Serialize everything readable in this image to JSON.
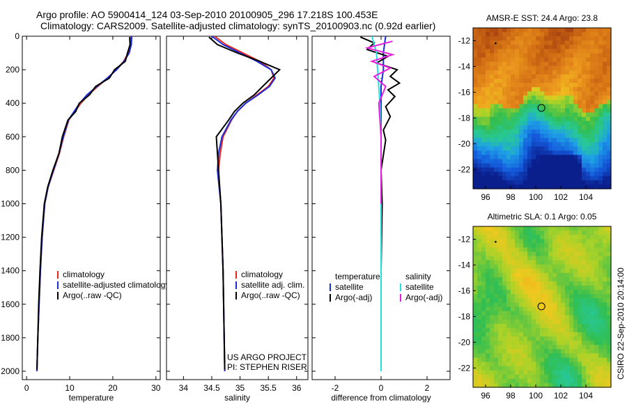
{
  "header": {
    "line1": "Argo profile: AO 5900414_124 03-Sep-2010 20100905_296 17.218S 100.453E",
    "line2": "Climatology: CARS2009. Satellite-adjusted climatology: synTS_20100903.nc (0.92d earlier)"
  },
  "side_label": "CSIRO 22-Sep-2010 20:14:00",
  "colors": {
    "climatology": "#e8261b",
    "satellite": "#1a2bd9",
    "argo": "#000000",
    "sat_salinity": "#22e0e0",
    "argo_salinity_diff": "#e61ee0"
  },
  "chart_data": [
    {
      "id": "temperature",
      "type": "line",
      "xlabel": "temperature",
      "ylabel": "",
      "xlim": [
        -1,
        31
      ],
      "ylim": [
        2050,
        0
      ],
      "xticks": [
        0,
        10,
        20,
        30
      ],
      "xtick_labels": [
        "0",
        "10",
        "20",
        "30"
      ],
      "yticks": [
        0,
        200,
        400,
        600,
        800,
        1000,
        1200,
        1400,
        1600,
        1800,
        2000
      ],
      "ytick_labels": [
        "0",
        "200",
        "400",
        "600",
        "800",
        "1000",
        "1200",
        "1400",
        "1600",
        "1800",
        "2000"
      ],
      "legend": [
        "climatology",
        "satellite-adjusted climatology",
        "Argo(..raw -QC)"
      ],
      "legend_location": "lower-middle",
      "series": [
        {
          "name": "climatology",
          "color": "#e8261b",
          "x": [
            24.2,
            24.1,
            23.6,
            22.5,
            20.8,
            18.8,
            16.5,
            14.3,
            12.6,
            11.2,
            9.8,
            8.6,
            7.6,
            6.3,
            5.0,
            4.2,
            3.6,
            3.2,
            2.9,
            2.6,
            2.4
          ],
          "y": [
            0,
            50,
            100,
            150,
            200,
            250,
            300,
            350,
            400,
            450,
            500,
            600,
            700,
            800,
            900,
            1000,
            1200,
            1400,
            1600,
            1800,
            2000
          ]
        },
        {
          "name": "satellite-adjusted climatology",
          "color": "#1a2bd9",
          "x": [
            24.4,
            24.3,
            23.8,
            22.6,
            20.9,
            18.7,
            16.3,
            14.0,
            12.3,
            11.0,
            9.7,
            8.5,
            7.5,
            6.2,
            5.0,
            4.2,
            3.6,
            3.2,
            2.9,
            2.6,
            2.4
          ],
          "y": [
            0,
            50,
            100,
            150,
            200,
            250,
            300,
            350,
            400,
            450,
            500,
            600,
            700,
            800,
            900,
            1000,
            1200,
            1400,
            1600,
            1800,
            2000
          ]
        },
        {
          "name": "Argo(..raw -QC)",
          "color": "#000000",
          "x": [
            23.9,
            24.0,
            23.4,
            22.9,
            20.4,
            19.2,
            16.0,
            14.6,
            12.2,
            11.4,
            9.6,
            8.3,
            7.5,
            6.1,
            4.9,
            4.1,
            3.5,
            3.1,
            2.8,
            2.6,
            2.4
          ],
          "y": [
            5,
            50,
            100,
            150,
            200,
            250,
            300,
            350,
            400,
            450,
            500,
            600,
            700,
            800,
            900,
            1000,
            1200,
            1400,
            1600,
            1800,
            1990
          ]
        }
      ]
    },
    {
      "id": "salinity",
      "type": "line",
      "xlabel": "salinity",
      "ylabel": "",
      "xlim": [
        33.7,
        36.2
      ],
      "ylim": [
        2050,
        0
      ],
      "xticks": [
        34,
        34.5,
        35,
        35.5,
        36
      ],
      "xtick_labels": [
        "34",
        "34.5",
        "35",
        "35.5",
        "36"
      ],
      "legend": [
        "climatology",
        "satellite adj. clim.",
        "Argo(..raw -QC)"
      ],
      "legend_location": "lower-right",
      "annotation": [
        "US ARGO PROJECT",
        "PI: STEPHEN RISER"
      ],
      "series": [
        {
          "name": "climatology",
          "color": "#e8261b",
          "x": [
            34.55,
            34.75,
            35.05,
            35.35,
            35.55,
            35.6,
            35.5,
            35.3,
            35.1,
            34.95,
            34.85,
            34.7,
            34.65,
            34.62,
            34.64,
            34.66,
            34.68,
            34.7,
            34.71,
            34.72,
            34.73
          ],
          "y": [
            0,
            50,
            100,
            150,
            200,
            250,
            300,
            350,
            400,
            450,
            500,
            600,
            700,
            800,
            900,
            1000,
            1200,
            1400,
            1600,
            1800,
            2000
          ]
        },
        {
          "name": "satellite adj. clim.",
          "color": "#1a2bd9",
          "x": [
            34.5,
            34.7,
            35.0,
            35.3,
            35.55,
            35.62,
            35.52,
            35.32,
            35.1,
            34.95,
            34.84,
            34.68,
            34.62,
            34.6,
            34.63,
            34.66,
            34.68,
            34.7,
            34.71,
            34.72,
            34.73
          ],
          "y": [
            0,
            50,
            100,
            150,
            200,
            250,
            300,
            350,
            400,
            450,
            500,
            600,
            700,
            800,
            900,
            1000,
            1200,
            1400,
            1600,
            1800,
            2000
          ]
        },
        {
          "name": "Argo(..raw -QC)",
          "color": "#000000",
          "x": [
            34.45,
            34.6,
            34.95,
            35.35,
            35.7,
            35.55,
            35.4,
            35.25,
            35.05,
            34.9,
            34.8,
            34.58,
            34.6,
            34.62,
            34.64,
            34.66,
            34.68,
            34.7,
            34.71,
            34.72,
            34.73
          ],
          "y": [
            5,
            50,
            100,
            150,
            200,
            250,
            300,
            350,
            400,
            450,
            500,
            600,
            700,
            800,
            900,
            1000,
            1200,
            1400,
            1600,
            1800,
            1990
          ]
        }
      ]
    },
    {
      "id": "difference",
      "type": "line",
      "xlabel": "difference from climatology",
      "ylabel": "",
      "xlim": [
        -3,
        3
      ],
      "ylim": [
        2050,
        0
      ],
      "xticks": [
        -2,
        0,
        2
      ],
      "xtick_labels": [
        "-2",
        "0",
        "2"
      ],
      "legend_left": [
        "temperature",
        "satellite",
        "Argo(-adj)"
      ],
      "legend_right": [
        "salinity",
        "satellite",
        "Argo(-adj)"
      ],
      "legend_location": "lower-middle",
      "series": [
        {
          "name": "temperature satellite",
          "color": "#1a2bd9",
          "x": [
            0.2,
            0.1,
            0.1,
            0.0,
            0.0,
            0.0,
            0.0,
            0.0,
            0.0,
            0.0,
            0.0,
            0.0,
            0.0
          ],
          "y": [
            0,
            100,
            200,
            300,
            400,
            500,
            600,
            800,
            1000,
            1200,
            1500,
            1800,
            2000
          ]
        },
        {
          "name": "temperature Argo(-adj)",
          "color": "#000000",
          "x": [
            -0.9,
            -0.3,
            -0.6,
            0.3,
            -0.2,
            0.7,
            0.4,
            0.8,
            0.3,
            0.6,
            0.2,
            0.4,
            0.1,
            0.2,
            0.0,
            0.05,
            0.0,
            0.0
          ],
          "y": [
            5,
            40,
            80,
            120,
            160,
            200,
            240,
            280,
            320,
            360,
            420,
            480,
            560,
            620,
            800,
            1000,
            1400,
            1990
          ]
        },
        {
          "name": "salinity satellite",
          "color": "#22e0e0",
          "x": [
            -0.4,
            -0.2,
            -0.15,
            -0.1,
            -0.05,
            0.0,
            0.0,
            0.0,
            0.0
          ],
          "y": [
            0,
            100,
            200,
            300,
            400,
            600,
            1000,
            1500,
            2000
          ]
        },
        {
          "name": "salinity Argo(-adj)",
          "color": "#e61ee0",
          "x": [
            0.5,
            -0.6,
            0.5,
            -0.4,
            0.4,
            -0.3,
            0.2,
            -0.1,
            0.0,
            0.0,
            0.0
          ],
          "y": [
            30,
            70,
            110,
            150,
            190,
            240,
            300,
            400,
            600,
            800,
            1000
          ]
        }
      ]
    },
    {
      "id": "sst_map",
      "type": "heatmap",
      "title": "AMSR-E SST: 24.4 Argo: 23.8",
      "xlim": [
        95,
        106
      ],
      "ylim": [
        -23.5,
        -11
      ],
      "xticks": [
        96,
        98,
        100,
        102,
        104
      ],
      "xtick_labels": [
        "96",
        "98",
        "100",
        "102",
        "104"
      ],
      "yticks": [
        -12,
        -14,
        -16,
        -18,
        -20,
        -22
      ],
      "ytick_labels": [
        "-12",
        "-14",
        "-16",
        "-18",
        "-20",
        "-22"
      ],
      "marker": {
        "lon": 100.453,
        "lat": -17.218
      },
      "marker2": {
        "lon": 96.8,
        "lat": -12.2
      }
    },
    {
      "id": "sla_map",
      "type": "heatmap",
      "title": "Altimetric SLA: 0.1 Argo: 0.05",
      "xlim": [
        95,
        106
      ],
      "ylim": [
        -23.5,
        -11
      ],
      "xticks": [
        96,
        98,
        100,
        102,
        104
      ],
      "xtick_labels": [
        "96",
        "98",
        "100",
        "102",
        "104"
      ],
      "yticks": [
        -12,
        -14,
        -16,
        -18,
        -20,
        -22
      ],
      "ytick_labels": [
        "-12",
        "-14",
        "-16",
        "-18",
        "-20",
        "-22"
      ],
      "marker": {
        "lon": 100.453,
        "lat": -17.218
      },
      "marker2": {
        "lon": 96.8,
        "lat": -12.2
      }
    }
  ]
}
